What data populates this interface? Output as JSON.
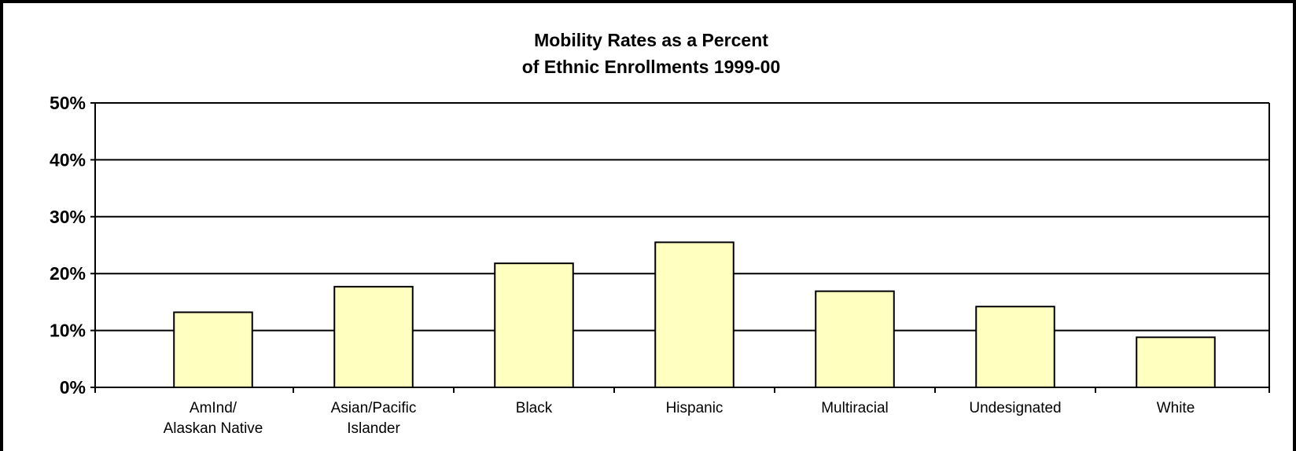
{
  "chart_data": {
    "type": "bar",
    "title": [
      "Mobility Rates as a Percent",
      "of Ethnic Enrollments 1999-00"
    ],
    "xlabel": "",
    "ylabel": "",
    "categories": [
      [
        "AmInd/",
        "Alaskan Native"
      ],
      [
        "Asian/Pacific",
        "Islander"
      ],
      [
        "Black"
      ],
      [
        "Hispanic"
      ],
      [
        "Multiracial"
      ],
      [
        "Undesignated"
      ],
      [
        "White"
      ]
    ],
    "values": [
      13.2,
      17.7,
      21.8,
      25.5,
      16.9,
      14.2,
      8.8
    ],
    "ylim": [
      0,
      50
    ],
    "yticks": [
      0,
      10,
      20,
      30,
      40,
      50
    ],
    "ytick_labels": [
      "0%",
      "10%",
      "20%",
      "30%",
      "40%",
      "50%"
    ],
    "grid": true,
    "legend": "none",
    "colors": {
      "bar_fill": "#FFFFC0",
      "bar_stroke": "#000000",
      "grid": "#000000",
      "background": "#FFFFFF"
    }
  }
}
